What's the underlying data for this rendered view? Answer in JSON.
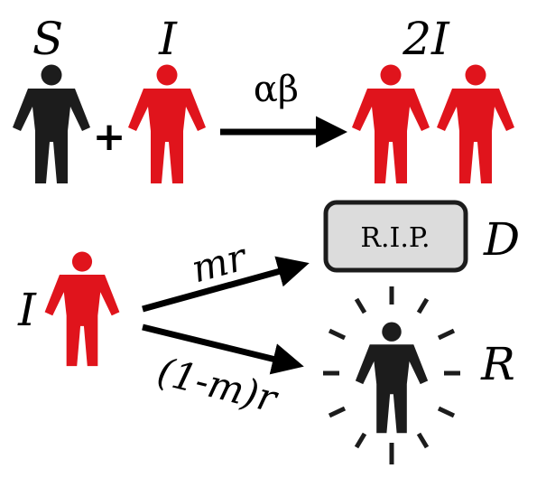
{
  "colors": {
    "infected": "#e0141c",
    "susceptible": "#1c1c1c",
    "arrow": "#000000",
    "box_fill": "#dcdcdc",
    "box_stroke": "#1c1c1c"
  },
  "reaction1": {
    "susceptible_label": "S",
    "infected_label": "I",
    "plus": "+",
    "rate": "αβ",
    "product_label": "2I"
  },
  "reaction2": {
    "infected_label": "I",
    "death_rate": "mr",
    "recovery_rate": "(1-m)r",
    "death_box_text": "R.I.P.",
    "death_label": "D",
    "recovered_label": "R"
  },
  "icons": {
    "susceptible": "person-icon",
    "infected": "person-icon",
    "recovered": "glowing-person-icon",
    "deceased": "tombstone-box"
  }
}
